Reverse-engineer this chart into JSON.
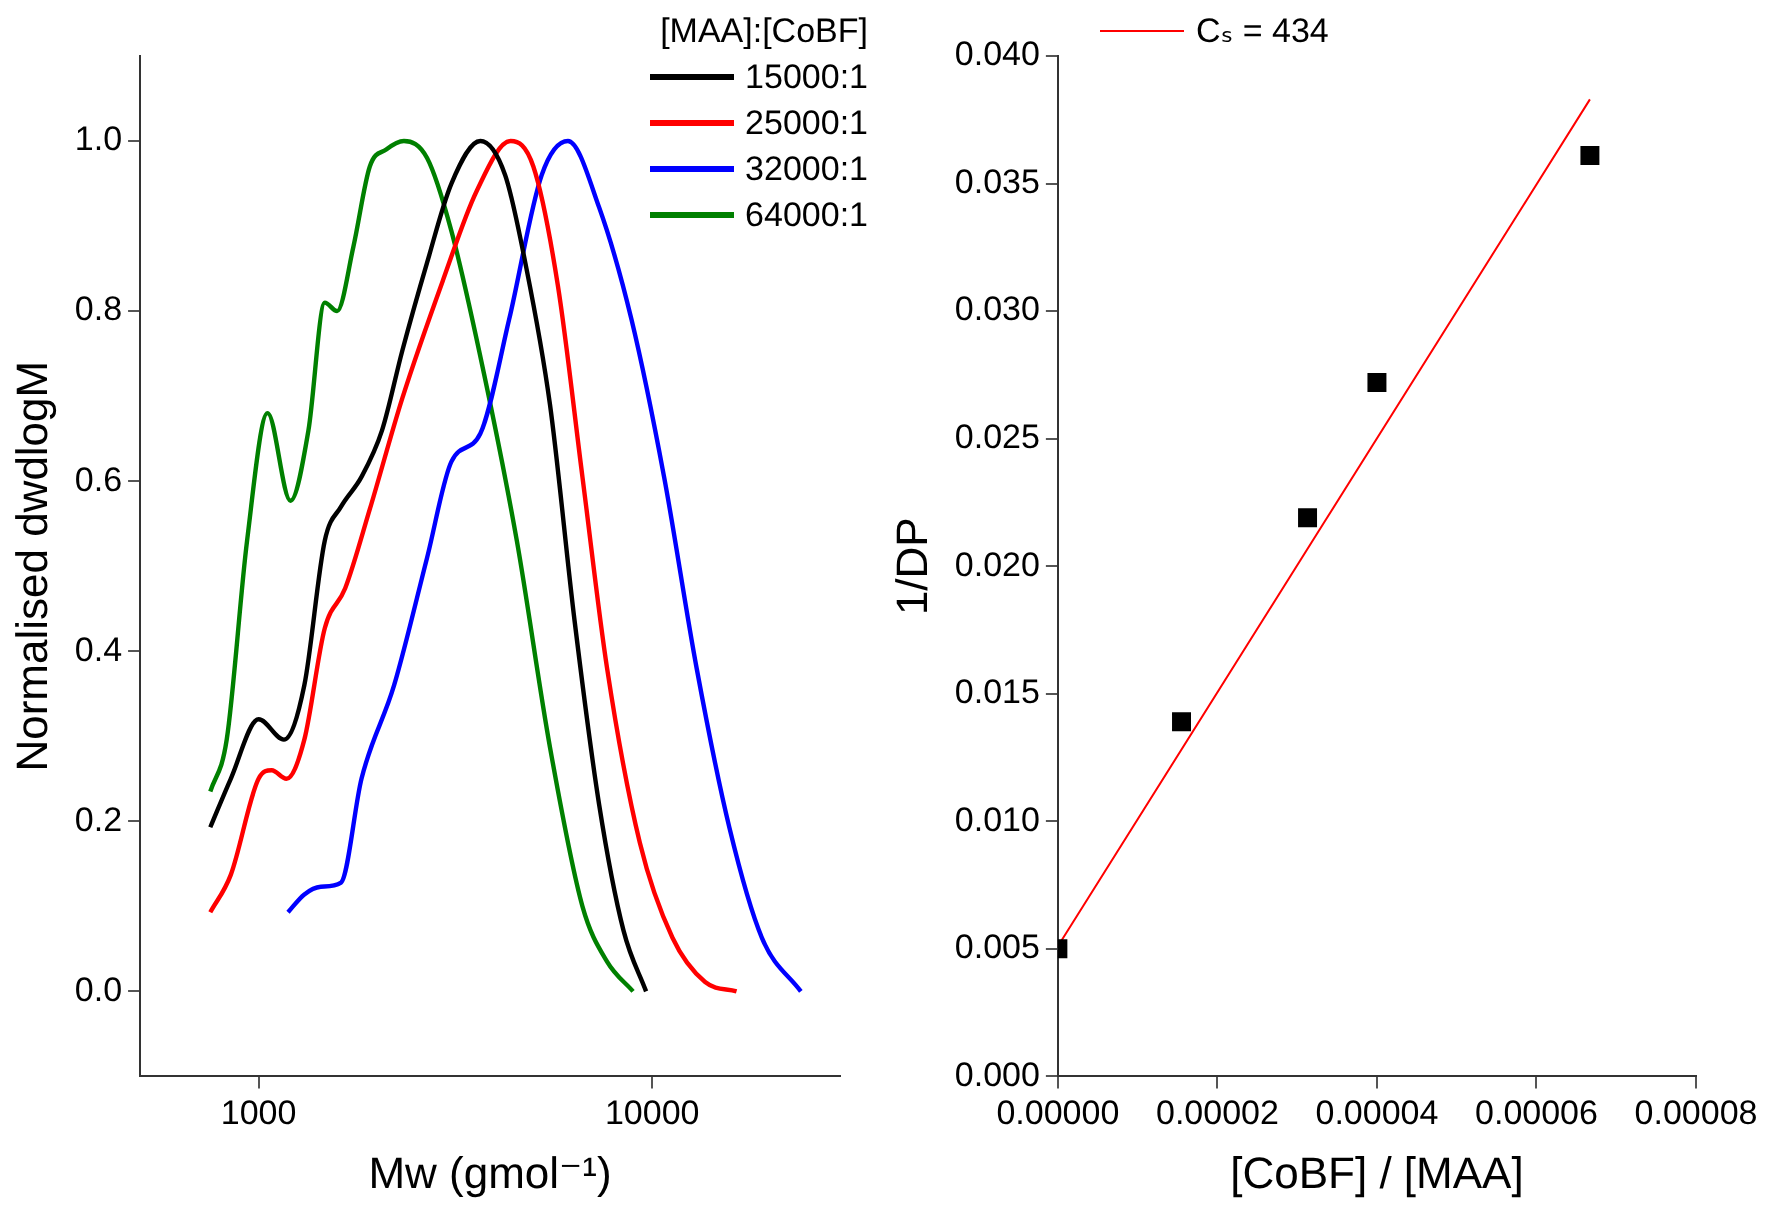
{
  "chart_data": [
    {
      "type": "line",
      "xlabel": "Mw (gmol⁻¹)",
      "ylabel": "Normalised dwdlogM",
      "legend_title": "[MAA]:[CoBF]",
      "legend": "top right",
      "log": "x",
      "grid": false,
      "marker": "none",
      "xlim": [
        500,
        30000
      ],
      "xticks": [
        1000,
        10000
      ],
      "ylim": [
        -0.1,
        1.1
      ],
      "yticks": [
        {
          "value": 0,
          "label": "0.0"
        },
        {
          "value": 0.2,
          "label": "0.2"
        },
        {
          "value": 0.4,
          "label": "0.4"
        },
        {
          "value": 0.6,
          "label": "0.6"
        },
        {
          "value": 0.8,
          "label": "0.8"
        },
        {
          "value": 1,
          "label": "1.0"
        }
      ],
      "series": [
        {
          "name": "15000:1",
          "color": "#000000",
          "x": [
            754,
            850,
            1000,
            1160,
            1307,
            1473,
            1620,
            1826,
            2060,
            2320,
            2680,
            3090,
            3660,
            4230,
            4760,
            5500,
            6350,
            7330,
            8450,
            9650
          ],
          "values": [
            0.193,
            0.25,
            0.32,
            0.296,
            0.36,
            0.53,
            0.57,
            0.605,
            0.66,
            0.754,
            0.857,
            0.95,
            1.0,
            0.96,
            0.857,
            0.69,
            0.436,
            0.22,
            0.072,
            0
          ]
        },
        {
          "name": "25000:1",
          "color": "#ff0000",
          "x": [
            754,
            850,
            1000,
            1080,
            1177,
            1307,
            1473,
            1660,
            1917,
            2320,
            2950,
            3580,
            4370,
            4990,
            5760,
            6650,
            7680,
            9300,
            11260,
            13630,
            16380
          ],
          "values": [
            0.093,
            0.137,
            0.25,
            0.26,
            0.25,
            0.296,
            0.427,
            0.474,
            0.567,
            0.698,
            0.838,
            0.941,
            1.0,
            0.97,
            0.83,
            0.605,
            0.38,
            0.175,
            0.063,
            0.011,
            0
          ]
        },
        {
          "name": "32000:1",
          "color": "#0000ff",
          "x": [
            1188,
            1307,
            1439,
            1620,
            1826,
            2210,
            2680,
            3090,
            3660,
            4330,
            5240,
            6110,
            7330,
            8860,
            10720,
            12970,
            15700,
            19000,
            23860
          ],
          "values": [
            0.093,
            0.114,
            0.123,
            0.128,
            0.25,
            0.36,
            0.51,
            0.623,
            0.656,
            0.79,
            0.96,
            1.0,
            0.922,
            0.79,
            0.605,
            0.38,
            0.193,
            0.063,
            0
          ]
        },
        {
          "name": "64000:1",
          "color": "#008000",
          "x": [
            754,
            830,
            935,
            1054,
            1205,
            1339,
            1473,
            1583,
            1742,
            1917,
            2110,
            2340,
            2680,
            3090,
            3740,
            4530,
            5500,
            6650,
            7680,
            8940
          ],
          "values": [
            0.235,
            0.296,
            0.53,
            0.68,
            0.577,
            0.66,
            0.81,
            0.8,
            0.876,
            0.97,
            0.99,
            1.0,
            0.98,
            0.894,
            0.726,
            0.53,
            0.287,
            0.1,
            0.035,
            0
          ]
        }
      ]
    },
    {
      "type": "scatter",
      "xlabel": "[CoBF] / [MAA]",
      "ylabel": "1/DP",
      "legend": "top left",
      "grid": false,
      "xlim": [
        0,
        8e-05
      ],
      "xticks": [
        {
          "value": 0,
          "label": "0.00000"
        },
        {
          "value": 2e-05,
          "label": "0.00002"
        },
        {
          "value": 4e-05,
          "label": "0.00004"
        },
        {
          "value": 6e-05,
          "label": "0.00006"
        },
        {
          "value": 8e-05,
          "label": "0.00008"
        }
      ],
      "ylim": [
        0,
        0.04
      ],
      "yticks": [
        {
          "value": 0,
          "label": "0.000"
        },
        {
          "value": 0.005,
          "label": "0.005"
        },
        {
          "value": 0.01,
          "label": "0.010"
        },
        {
          "value": 0.015,
          "label": "0.015"
        },
        {
          "value": 0.02,
          "label": "0.020"
        },
        {
          "value": 0.025,
          "label": "0.025"
        },
        {
          "value": 0.03,
          "label": "0.030"
        },
        {
          "value": 0.035,
          "label": "0.035"
        },
        {
          "value": 0.04,
          "label": "0.040"
        }
      ],
      "series": [
        {
          "color": "#000000",
          "marker": "square",
          "x": [
            0,
            1.55e-05,
            3.13e-05,
            4e-05,
            6.67e-05
          ],
          "values": [
            0.005,
            0.0139,
            0.0219,
            0.0272,
            0.0361
          ]
        },
        {
          "type": "line",
          "name": "Cₛ = 434",
          "color": "#ff0000",
          "marker": "none",
          "x": [
            0,
            6.67e-05
          ],
          "values": [
            0.0051,
            0.0383
          ]
        }
      ]
    }
  ]
}
